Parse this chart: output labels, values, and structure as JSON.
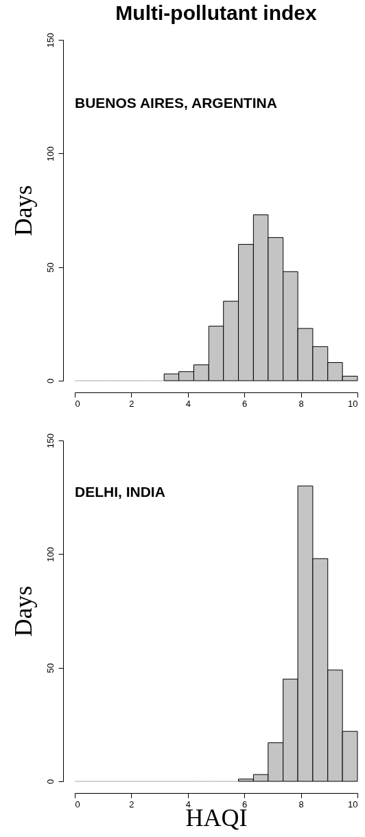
{
  "chart_data": [
    {
      "type": "histogram",
      "title": "Multi-pollutant index",
      "ylabel": "Days",
      "annotations": [
        "BUENOS AIRES, ARGENTINA"
      ],
      "color": "#c4c4c4",
      "bins": [
        0,
        0.53,
        1.05,
        1.58,
        2.11,
        2.63,
        3.16,
        3.68,
        4.21,
        4.74,
        5.26,
        5.79,
        6.32,
        6.84,
        7.37,
        7.89,
        8.42,
        8.95,
        9.47,
        10
      ],
      "values": [
        0,
        0,
        0,
        0,
        0,
        0,
        3,
        4,
        7,
        24,
        35,
        60,
        73,
        63,
        48,
        23,
        15,
        8,
        2
      ],
      "xlim": [
        0,
        10
      ],
      "xticks": [
        0,
        2,
        4,
        6,
        8,
        10
      ],
      "ylim": [
        0,
        150
      ],
      "yticks": [
        0,
        50,
        100,
        150
      ]
    },
    {
      "type": "histogram",
      "ylabel": "Days",
      "xlabel": "HAQI",
      "annotations": [
        "DELHI, INDIA"
      ],
      "color": "#c4c4c4",
      "bins": [
        0,
        0.53,
        1.05,
        1.58,
        2.11,
        2.63,
        3.16,
        3.68,
        4.21,
        4.74,
        5.26,
        5.79,
        6.32,
        6.84,
        7.37,
        7.89,
        8.42,
        8.95,
        9.47,
        10
      ],
      "values": [
        0,
        0,
        0,
        0,
        0,
        0,
        0,
        0,
        0,
        0,
        0,
        1,
        3,
        17,
        45,
        130,
        98,
        49,
        22
      ],
      "xlim": [
        0,
        10
      ],
      "xticks": [
        0,
        2,
        4,
        6,
        8,
        10
      ],
      "ylim": [
        0,
        150
      ],
      "yticks": [
        0,
        50,
        100,
        150
      ]
    }
  ]
}
